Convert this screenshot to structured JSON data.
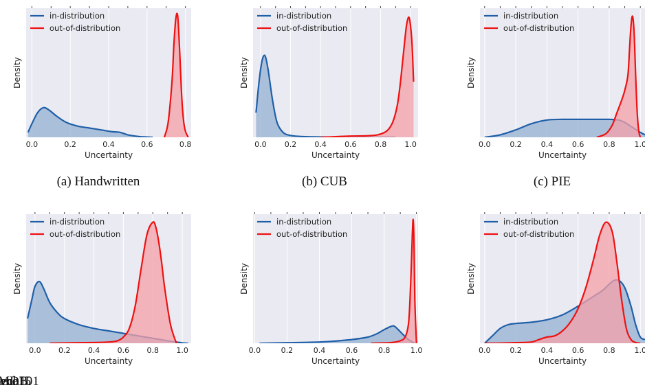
{
  "colors": {
    "in_distribution": "#1f5fa8",
    "in_distribution_fill": "#8eacd0",
    "out_of_distribution": "#ee1111",
    "out_of_distribution_fill": "#f4a0a8",
    "panel_bg": "#eaeaf2",
    "grid": "#ffffff"
  },
  "legend_placement": "top-left",
  "chart_data": [
    {
      "type": "area",
      "caption": "(a) Handwritten",
      "xlabel": "Uncertainty",
      "ylabel": "Density",
      "xlim": [
        -0.03,
        0.83
      ],
      "ymax": 1.0,
      "xticks": [
        0.0,
        0.2,
        0.4,
        0.6,
        0.8
      ],
      "tick_labels": [
        "0.0",
        "0.2",
        "0.4",
        "0.6",
        "0.8"
      ],
      "grid": true,
      "series": [
        {
          "name": "in-distribution",
          "x": [
            -0.02,
            0.0,
            0.03,
            0.06,
            0.09,
            0.13,
            0.18,
            0.24,
            0.3,
            0.36,
            0.42,
            0.46,
            0.5,
            0.56,
            0.6,
            0.63
          ],
          "y": [
            0.04,
            0.11,
            0.2,
            0.24,
            0.22,
            0.17,
            0.12,
            0.09,
            0.075,
            0.06,
            0.045,
            0.04,
            0.02,
            0.006,
            0.002,
            0.0
          ]
        },
        {
          "name": "out-of-distribution",
          "x": [
            0.69,
            0.71,
            0.73,
            0.74,
            0.75,
            0.76,
            0.77,
            0.78,
            0.79,
            0.8,
            0.815
          ],
          "y": [
            0.0,
            0.12,
            0.45,
            0.75,
            0.96,
            0.98,
            0.7,
            0.35,
            0.14,
            0.05,
            0.0
          ]
        }
      ]
    },
    {
      "type": "area",
      "caption": "(b) CUB",
      "xlabel": "Uncertainty",
      "ylabel": "Density",
      "xlim": [
        -0.05,
        1.05
      ],
      "ymax": 1.0,
      "xticks": [
        0.0,
        0.2,
        0.4,
        0.6,
        0.8,
        1.0
      ],
      "tick_labels": [
        "0.0",
        "0.2",
        "0.4",
        "0.6",
        "0.8",
        "1.0"
      ],
      "grid": true,
      "series": [
        {
          "name": "in-distribution",
          "x": [
            -0.03,
            -0.01,
            0.01,
            0.03,
            0.05,
            0.08,
            0.11,
            0.15,
            0.2,
            0.3,
            0.5,
            0.7,
            0.9
          ],
          "y": [
            0.2,
            0.45,
            0.62,
            0.66,
            0.55,
            0.3,
            0.12,
            0.04,
            0.015,
            0.005,
            0.002,
            0.001,
            0.0
          ]
        },
        {
          "name": "out-of-distribution",
          "x": [
            0.4,
            0.5,
            0.6,
            0.7,
            0.78,
            0.84,
            0.88,
            0.91,
            0.93,
            0.95,
            0.97,
            0.98,
            0.99,
            1.0,
            1.01,
            1.02
          ],
          "y": [
            0.0,
            0.005,
            0.01,
            0.012,
            0.02,
            0.05,
            0.12,
            0.25,
            0.42,
            0.65,
            0.88,
            0.95,
            0.97,
            0.9,
            0.75,
            0.45
          ]
        }
      ]
    },
    {
      "type": "area",
      "caption": "(c) PIE",
      "xlabel": "Uncertainty",
      "ylabel": "Density",
      "xlim": [
        -0.03,
        1.03
      ],
      "ymax": 1.0,
      "xticks": [
        0.0,
        0.2,
        0.4,
        0.6,
        0.8,
        1.0
      ],
      "tick_labels": [
        "0.0",
        "0.2",
        "0.4",
        "0.6",
        "0.8",
        "1.0"
      ],
      "grid": true,
      "series": [
        {
          "name": "in-distribution",
          "x": [
            0.0,
            0.1,
            0.2,
            0.3,
            0.4,
            0.5,
            0.6,
            0.7,
            0.8,
            0.86,
            0.9,
            0.95,
            1.0,
            1.03
          ],
          "y": [
            0.0,
            0.02,
            0.06,
            0.11,
            0.14,
            0.145,
            0.145,
            0.145,
            0.145,
            0.14,
            0.12,
            0.08,
            0.04,
            0.02
          ]
        },
        {
          "name": "out-of-distribution",
          "x": [
            0.72,
            0.78,
            0.82,
            0.85,
            0.88,
            0.9,
            0.92,
            0.93,
            0.94,
            0.95,
            0.96,
            0.97,
            0.98,
            0.99,
            1.0
          ],
          "y": [
            0.0,
            0.03,
            0.1,
            0.2,
            0.3,
            0.38,
            0.5,
            0.7,
            0.9,
            0.98,
            0.85,
            0.5,
            0.2,
            0.05,
            0.0
          ]
        }
      ]
    },
    {
      "type": "area",
      "caption": "(d) Caltech101",
      "xlabel": "Uncertainty",
      "ylabel": "Density",
      "xlim": [
        -0.06,
        1.06
      ],
      "ymax": 1.0,
      "xticks": [
        0.0,
        0.2,
        0.4,
        0.6,
        0.8,
        1.0
      ],
      "tick_labels": [
        "0.0",
        "0.2",
        "0.4",
        "0.6",
        "0.8",
        "1.0"
      ],
      "grid": true,
      "series": [
        {
          "name": "in-distribution",
          "x": [
            -0.05,
            -0.02,
            0.0,
            0.03,
            0.06,
            0.1,
            0.15,
            0.2,
            0.3,
            0.4,
            0.5,
            0.6,
            0.7,
            0.8,
            0.9,
            0.96,
            1.0,
            1.04
          ],
          "y": [
            0.2,
            0.36,
            0.46,
            0.5,
            0.44,
            0.33,
            0.25,
            0.2,
            0.15,
            0.12,
            0.1,
            0.08,
            0.06,
            0.04,
            0.02,
            0.01,
            0.003,
            0.0
          ]
        },
        {
          "name": "out-of-distribution",
          "x": [
            0.1,
            0.2,
            0.3,
            0.4,
            0.5,
            0.56,
            0.6,
            0.64,
            0.68,
            0.72,
            0.76,
            0.8,
            0.82,
            0.84,
            0.86,
            0.88,
            0.92,
            0.96
          ],
          "y": [
            0.0,
            0.002,
            0.004,
            0.006,
            0.01,
            0.02,
            0.05,
            0.12,
            0.3,
            0.6,
            0.88,
            0.98,
            0.94,
            0.82,
            0.65,
            0.45,
            0.15,
            0.0
          ]
        }
      ]
    },
    {
      "type": "area",
      "caption": "(e) Scene15",
      "xlabel": "Uncertainty",
      "ylabel": "Density",
      "xlim": [
        -0.01,
        1.01
      ],
      "ymax": 1.0,
      "xticks": [
        0.0,
        0.2,
        0.4,
        0.6,
        0.8,
        1.0
      ],
      "tick_labels": [
        "0.0",
        "0.2",
        "0.4",
        "0.6",
        "0.8",
        "1.0"
      ],
      "grid": true,
      "series": [
        {
          "name": "in-distribution",
          "x": [
            0.03,
            0.2,
            0.4,
            0.5,
            0.6,
            0.7,
            0.76,
            0.8,
            0.84,
            0.86,
            0.88,
            0.91,
            0.95,
            0.99
          ],
          "y": [
            0.0,
            0.004,
            0.01,
            0.018,
            0.03,
            0.05,
            0.08,
            0.11,
            0.135,
            0.14,
            0.12,
            0.08,
            0.03,
            0.0
          ]
        },
        {
          "name": "out-of-distribution",
          "x": [
            0.72,
            0.84,
            0.9,
            0.93,
            0.95,
            0.96,
            0.97,
            0.975,
            0.98,
            0.985,
            0.99,
            1.0
          ],
          "y": [
            0.0,
            0.005,
            0.02,
            0.05,
            0.15,
            0.35,
            0.7,
            0.9,
            1.0,
            0.8,
            0.35,
            0.0
          ]
        }
      ]
    },
    {
      "type": "area",
      "caption": "(f) HMDB",
      "xlabel": "Uncertainty",
      "ylabel": "Density",
      "xlim": [
        -0.03,
        1.03
      ],
      "ymax": 1.0,
      "xticks": [
        0.0,
        0.2,
        0.4,
        0.6,
        0.8,
        1.0
      ],
      "tick_labels": [
        "0.0",
        "0.2",
        "0.4",
        "0.6",
        "0.8",
        "1.0"
      ],
      "grid": true,
      "series": [
        {
          "name": "in-distribution",
          "x": [
            0.0,
            0.05,
            0.1,
            0.15,
            0.2,
            0.3,
            0.4,
            0.5,
            0.6,
            0.7,
            0.76,
            0.82,
            0.86,
            0.9,
            0.94,
            0.97,
            1.0,
            1.03
          ],
          "y": [
            0.0,
            0.06,
            0.12,
            0.15,
            0.16,
            0.17,
            0.19,
            0.23,
            0.3,
            0.38,
            0.43,
            0.5,
            0.51,
            0.45,
            0.3,
            0.15,
            0.05,
            0.03
          ]
        },
        {
          "name": "out-of-distribution",
          "x": [
            0.0,
            0.1,
            0.2,
            0.3,
            0.35,
            0.4,
            0.45,
            0.5,
            0.55,
            0.6,
            0.65,
            0.7,
            0.74,
            0.78,
            0.82,
            0.85,
            0.88,
            0.91,
            0.94,
            0.97,
            1.0
          ],
          "y": [
            0.0,
            0.001,
            0.005,
            0.01,
            0.03,
            0.05,
            0.06,
            0.1,
            0.17,
            0.28,
            0.45,
            0.68,
            0.88,
            0.98,
            0.9,
            0.65,
            0.35,
            0.12,
            0.03,
            0.006,
            0.0
          ]
        }
      ]
    }
  ]
}
